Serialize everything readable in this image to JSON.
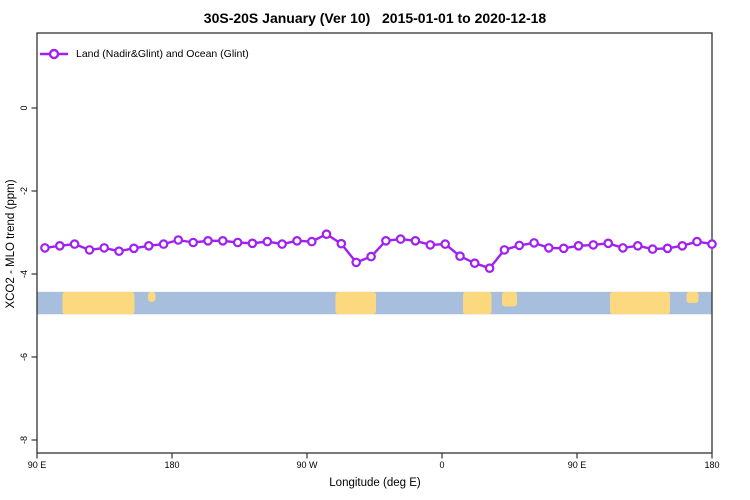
{
  "title": "30S-20S January (Ver 10)   2015-01-01 to 2020-12-18",
  "legend": {
    "label": "Land (Nadir&Glint) and Ocean (Glint)"
  },
  "colors": {
    "series": "#a020f0",
    "marker_fill": "#ffffff",
    "ocean": "#a8bedd",
    "land": "#fcd97f",
    "axis": "#333333",
    "background": "#ffffff"
  },
  "chart_data": {
    "type": "line",
    "title": "30S-20S January (Ver 10)   2015-01-01 to 2020-12-18",
    "x_axis": {
      "label": "Longitude (deg E)",
      "range_deg": [
        90,
        540
      ],
      "tick_deg": [
        90,
        180,
        270,
        360,
        450,
        540
      ],
      "tick_labels": [
        "90 E",
        "180",
        "90 W",
        "0",
        "90 E",
        "180"
      ],
      "grid": false
    },
    "y_axis": {
      "label": "XCO2 - MLO trend (ppm)",
      "range": [
        -8.4,
        1.8
      ],
      "ticks": [
        0,
        -2,
        -4,
        -6,
        -8
      ],
      "tick_labels": [
        "0",
        "-2",
        "-4",
        "-6",
        "-8"
      ],
      "grid": false
    },
    "series": [
      {
        "name": "Land (Nadir&Glint) and Ocean (Glint)",
        "color": "#a020f0",
        "marker": "open-circle",
        "x_deg": [
          95.3,
          105.2,
          115.1,
          125.0,
          134.8,
          144.7,
          154.6,
          164.5,
          174.4,
          184.2,
          194.1,
          204.0,
          213.9,
          223.8,
          233.6,
          243.5,
          253.4,
          263.3,
          273.2,
          283.0,
          292.9,
          302.8,
          312.7,
          322.6,
          332.4,
          342.3,
          352.2,
          362.1,
          372.0,
          381.8,
          391.7,
          401.6,
          411.5,
          421.4,
          431.2,
          441.1,
          451.0,
          460.9,
          470.8,
          480.6,
          490.5,
          500.4,
          510.3,
          520.2,
          530.0,
          540.0
        ],
        "values": [
          -3.37,
          -3.32,
          -3.28,
          -3.42,
          -3.37,
          -3.45,
          -3.38,
          -3.32,
          -3.28,
          -3.18,
          -3.24,
          -3.2,
          -3.2,
          -3.24,
          -3.26,
          -3.22,
          -3.28,
          -3.2,
          -3.22,
          -3.04,
          -3.27,
          -3.72,
          -3.58,
          -3.2,
          -3.16,
          -3.2,
          -3.3,
          -3.28,
          -3.57,
          -3.74,
          -3.86,
          -3.42,
          -3.31,
          -3.25,
          -3.37,
          -3.38,
          -3.32,
          -3.3,
          -3.26,
          -3.37,
          -3.32,
          -3.4,
          -3.38,
          -3.32,
          -3.22,
          -3.28
        ]
      }
    ],
    "land_ocean_strip": {
      "description": "land/ocean map band for latitude 30S-20S along longitude axis",
      "y_range_ppm": [
        -4.43,
        -4.97
      ],
      "ocean_color": "#a8bedd",
      "land_color": "#fcd97f",
      "land_patches_deg": [
        {
          "name": "australia",
          "from_deg": 107,
          "to_deg": 155,
          "height_frac": 1
        },
        {
          "name": "new-caledonia",
          "from_deg": 164,
          "to_deg": 169,
          "height_frac": 0.45
        },
        {
          "name": "south-america",
          "from_deg": 289,
          "to_deg": 316,
          "height_frac": 1
        },
        {
          "name": "africa",
          "from_deg": 374,
          "to_deg": 393,
          "height_frac": 1
        },
        {
          "name": "madagascar",
          "from_deg": 400,
          "to_deg": 410,
          "height_frac": 0.65
        },
        {
          "name": "australia-2",
          "from_deg": 472,
          "to_deg": 512,
          "height_frac": 1
        },
        {
          "name": "new-caledonia-2",
          "from_deg": 523,
          "to_deg": 531,
          "height_frac": 0.5
        }
      ]
    }
  }
}
